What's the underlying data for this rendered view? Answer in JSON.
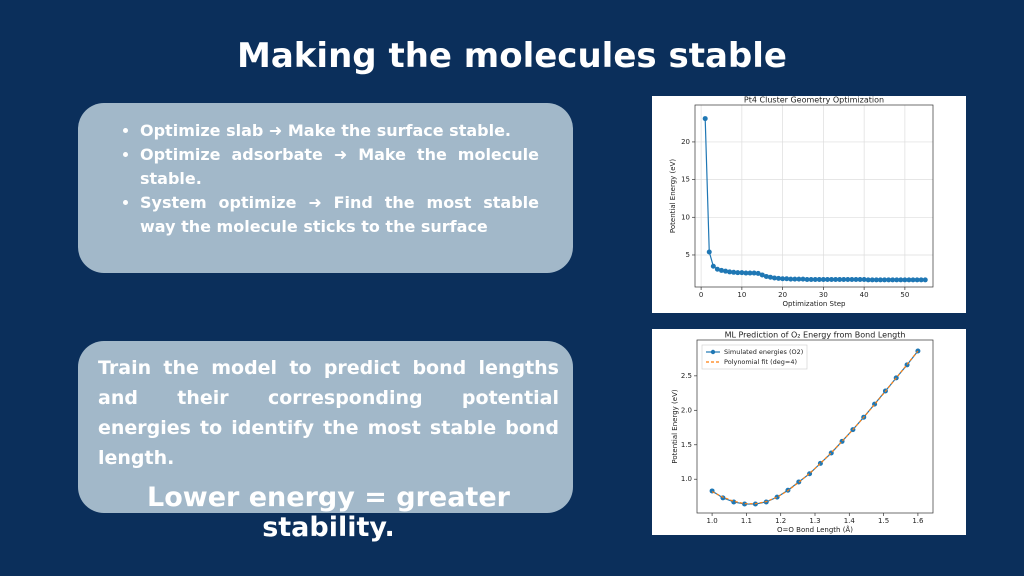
{
  "title": "Making the molecules stable",
  "bullets": [
    "Optimize slab ➜ Make the surface stable.",
    "Optimize adsorbate ➜ Make the molecule stable.",
    "System optimize ➜ Find the most stable way the molecule sticks to the surface"
  ],
  "summary": "Train the model to predict bond lengths and their corresponding potential energies to identify the most stable bond length.",
  "conclusion": "Lower energy = greater stability.",
  "chart_data": [
    {
      "type": "line",
      "title": "Pt4 Cluster Geometry Optimization",
      "x_label": "Optimization Step",
      "y_label": "Potential Energy (eV)",
      "x": [
        1,
        2,
        3,
        4,
        5,
        6,
        7,
        8,
        9,
        10,
        11,
        12,
        13,
        14,
        15,
        16,
        17,
        18,
        19,
        20,
        21,
        22,
        23,
        24,
        25,
        26,
        27,
        28,
        29,
        30,
        31,
        32,
        33,
        34,
        35,
        36,
        37,
        38,
        39,
        40,
        41,
        42,
        43,
        44,
        45,
        46,
        47,
        48,
        49,
        50,
        51,
        52,
        53,
        54,
        55
      ],
      "series": [
        {
          "color": "#1f77b4",
          "marker": true,
          "dashed": false,
          "values": [
            23.1,
            5.4,
            3.5,
            3.1,
            2.95,
            2.85,
            2.75,
            2.7,
            2.65,
            2.65,
            2.6,
            2.6,
            2.6,
            2.55,
            2.35,
            2.15,
            2.05,
            1.95,
            1.9,
            1.85,
            1.85,
            1.8,
            1.8,
            1.8,
            1.8,
            1.75,
            1.75,
            1.75,
            1.75,
            1.75,
            1.75,
            1.75,
            1.75,
            1.75,
            1.75,
            1.75,
            1.75,
            1.75,
            1.75,
            1.75,
            1.7,
            1.7,
            1.7,
            1.7,
            1.7,
            1.7,
            1.7,
            1.7,
            1.7,
            1.7,
            1.7,
            1.7,
            1.7,
            1.7,
            1.7
          ]
        }
      ],
      "xlim": [
        -1.5,
        56.9
      ],
      "ylim": [
        0.75,
        24.9
      ],
      "xticks": [
        0,
        10,
        20,
        30,
        40,
        50
      ],
      "yticks": [
        5,
        10,
        15,
        20
      ],
      "grid": true
    },
    {
      "type": "line",
      "title": "ML Prediction of O₂ Energy from Bond Length",
      "x_label": "O=O Bond Length (Å)",
      "y_label": "Potential Energy (eV)",
      "x": [
        1.0,
        1.0316,
        1.0632,
        1.0947,
        1.1263,
        1.1579,
        1.1895,
        1.2211,
        1.2526,
        1.2842,
        1.3158,
        1.3474,
        1.3789,
        1.4105,
        1.4421,
        1.4737,
        1.5053,
        1.5368,
        1.5684,
        1.6
      ],
      "series": [
        {
          "name": "Simulated energies (O2)",
          "color": "#1f77b4",
          "marker": true,
          "dashed": false,
          "values": [
            0.83,
            0.73,
            0.67,
            0.64,
            0.64,
            0.67,
            0.74,
            0.84,
            0.96,
            1.08,
            1.23,
            1.38,
            1.55,
            1.72,
            1.9,
            2.09,
            2.28,
            2.47,
            2.66,
            2.86
          ]
        },
        {
          "name": "Polynomial fit (deg=4)",
          "color": "#ff7f0e",
          "marker": false,
          "dashed": true,
          "values": [
            0.82,
            0.74,
            0.68,
            0.645,
            0.645,
            0.675,
            0.74,
            0.835,
            0.955,
            1.085,
            1.23,
            1.385,
            1.55,
            1.72,
            1.9,
            2.085,
            2.275,
            2.47,
            2.665,
            2.86
          ]
        }
      ],
      "xlim": [
        0.956,
        1.644
      ],
      "ylim": [
        0.51,
        3.02
      ],
      "xticks": [
        {
          "value": 1,
          "label": "1.0"
        },
        1.1,
        1.2,
        1.3,
        1.4,
        1.5,
        1.6
      ],
      "yticks": [
        {
          "value": 1,
          "label": "1.0"
        },
        1.5,
        {
          "value": 2,
          "label": "2.0"
        },
        2.5
      ],
      "grid": false,
      "legend": "upper left"
    }
  ]
}
